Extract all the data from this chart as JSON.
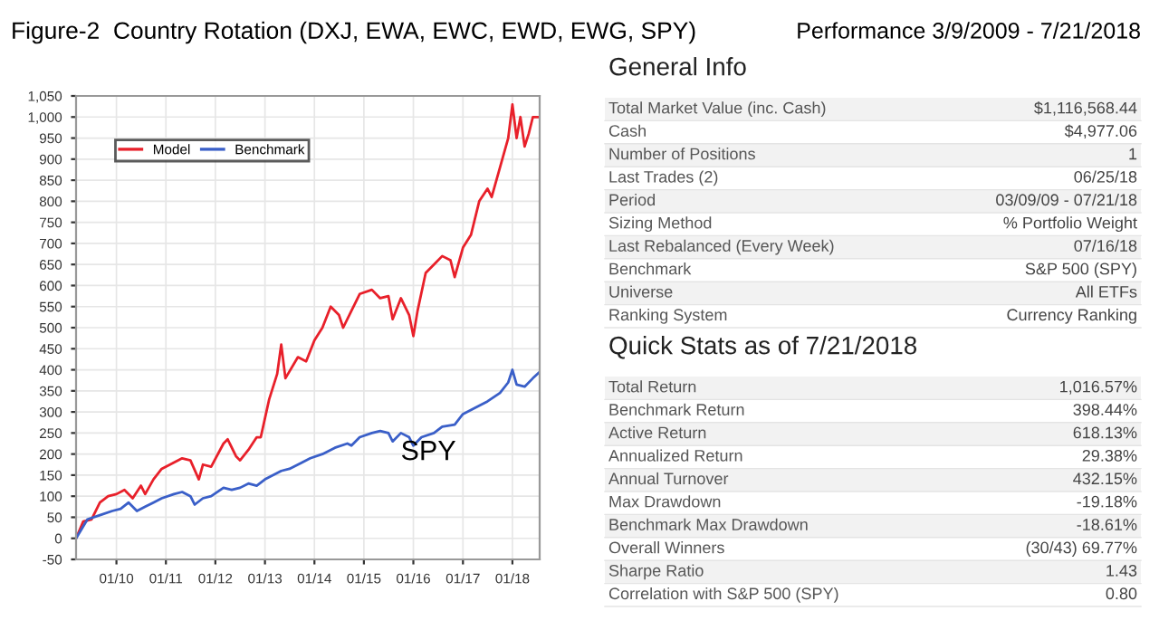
{
  "chart_data": [
    {
      "type": "line",
      "title": "Figure-2  Country Rotation (DXJ, EWA, EWC, EWD, EWG, SPY)",
      "legend": "top left",
      "grid": true,
      "marker": "none",
      "line_style": "solid",
      "xlim": [
        "2009-03-09",
        "2018-07-21"
      ],
      "xticks": [
        {
          "value": "2010-01-01",
          "label": "01/10"
        },
        {
          "value": "2011-01-01",
          "label": "01/11"
        },
        {
          "value": "2012-01-01",
          "label": "01/12"
        },
        {
          "value": "2013-01-01",
          "label": "01/13"
        },
        {
          "value": "2014-01-01",
          "label": "01/14"
        },
        {
          "value": "2015-01-01",
          "label": "01/15"
        },
        {
          "value": "2016-01-01",
          "label": "01/16"
        },
        {
          "value": "2017-01-01",
          "label": "01/17"
        },
        {
          "value": "2018-01-01",
          "label": "01/18"
        }
      ],
      "ylim": [
        -50,
        1050
      ],
      "yticks": [
        -50,
        0,
        50,
        100,
        150,
        200,
        250,
        300,
        350,
        400,
        450,
        500,
        550,
        600,
        650,
        700,
        750,
        800,
        850,
        900,
        950,
        {
          "value": 1000,
          "label": "1,000"
        },
        {
          "value": 1050,
          "label": "1,050"
        }
      ],
      "annotations": [
        "SPY"
      ],
      "series": [
        {
          "name": "Model",
          "color": "#e8202a",
          "x": [
            "2009-03-09",
            "2009-05",
            "2009-07",
            "2009-09",
            "2009-11",
            "2010-01",
            "2010-03",
            "2010-05",
            "2010-07",
            "2010-08",
            "2010-10",
            "2010-12",
            "2011-03",
            "2011-05",
            "2011-07",
            "2011-09",
            "2011-10",
            "2011-12",
            "2012-03",
            "2012-04",
            "2012-06",
            "2012-07",
            "2012-09",
            "2012-11",
            "2012-12",
            "2013-02",
            "2013-04",
            "2013-05",
            "2013-06",
            "2013-09",
            "2013-11",
            "2014-01",
            "2014-03",
            "2014-05",
            "2014-07",
            "2014-08",
            "2014-10",
            "2014-12",
            "2015-03",
            "2015-05",
            "2015-07",
            "2015-08",
            "2015-10",
            "2015-12",
            "2016-01",
            "2016-02",
            "2016-04",
            "2016-06",
            "2016-08",
            "2016-10",
            "2016-11",
            "2017-01",
            "2017-03",
            "2017-05",
            "2017-07",
            "2017-08",
            "2017-10",
            "2017-12",
            "2018-01",
            "2018-02",
            "2018-03",
            "2018-04",
            "2018-05",
            "2018-06",
            "2018-07-21"
          ],
          "values": [
            0,
            40,
            45,
            85,
            100,
            105,
            115,
            95,
            125,
            105,
            140,
            165,
            180,
            190,
            185,
            140,
            175,
            170,
            225,
            235,
            195,
            185,
            210,
            240,
            240,
            330,
            390,
            460,
            380,
            430,
            420,
            470,
            500,
            550,
            530,
            500,
            540,
            580,
            590,
            570,
            575,
            520,
            570,
            530,
            480,
            540,
            630,
            650,
            670,
            660,
            620,
            690,
            720,
            800,
            830,
            810,
            880,
            950,
            1030,
            950,
            1000,
            930,
            960,
            1000,
            1000
          ]
        },
        {
          "name": "Benchmark",
          "color": "#3a5fc8",
          "x": [
            "2009-03-09",
            "2009-06",
            "2009-09",
            "2009-12",
            "2010-02",
            "2010-04",
            "2010-06",
            "2010-08",
            "2010-10",
            "2010-12",
            "2011-03",
            "2011-05",
            "2011-07",
            "2011-08",
            "2011-10",
            "2011-12",
            "2012-03",
            "2012-05",
            "2012-07",
            "2012-09",
            "2012-11",
            "2013-01",
            "2013-05",
            "2013-07",
            "2013-10",
            "2013-12",
            "2014-03",
            "2014-06",
            "2014-09",
            "2014-10",
            "2014-12",
            "2015-03",
            "2015-05",
            "2015-07",
            "2015-08",
            "2015-10",
            "2015-12",
            "2016-01",
            "2016-03",
            "2016-06",
            "2016-08",
            "2016-11",
            "2017-01",
            "2017-04",
            "2017-07",
            "2017-10",
            "2017-12",
            "2018-01",
            "2018-02",
            "2018-04",
            "2018-06",
            "2018-07-21"
          ],
          "values": [
            0,
            45,
            55,
            65,
            70,
            85,
            65,
            75,
            85,
            95,
            105,
            110,
            100,
            80,
            95,
            100,
            120,
            115,
            120,
            130,
            125,
            140,
            160,
            165,
            180,
            190,
            200,
            215,
            225,
            220,
            240,
            250,
            255,
            250,
            230,
            250,
            240,
            220,
            240,
            250,
            265,
            270,
            295,
            310,
            325,
            345,
            370,
            400,
            365,
            360,
            380,
            395
          ]
        }
      ]
    },
    {
      "type": "other",
      "title": "Performance 3/9/2009 - 7/21/2018",
      "categories": [
        "General Info",
        "Total Market Value (inc. Cash)",
        "Cash",
        "Number of Positions",
        "Last Trades (2)",
        "Period",
        "Sizing Method",
        "Last Rebalanced (Every Week)",
        "Benchmark",
        "Universe",
        "Ranking System",
        "Quick Stats as of 7/21/2018",
        "Total Return",
        "Benchmark Return",
        "Active Return",
        "Annualized Return",
        "Annual Turnover",
        "Max Drawdown",
        "Benchmark Max Drawdown",
        "Overall Winners",
        "Sharpe Ratio",
        "Correlation with S&P 500 (SPY)"
      ],
      "value_labels": [
        null,
        "$1,116,568.44",
        "$4,977.06",
        "1",
        "06/25/18",
        "03/09/09 - 07/21/18",
        "% Portfolio Weight",
        "07/16/18",
        "S&P 500 (SPY)",
        "All ETFs",
        "Currency Ranking",
        null,
        "1,016.57%",
        "398.44%",
        "618.13%",
        "29.38%",
        "432.15%",
        "-19.18%",
        "-18.61%",
        "(30/43) 69.77%",
        "1.43",
        "0.80"
      ]
    }
  ]
}
